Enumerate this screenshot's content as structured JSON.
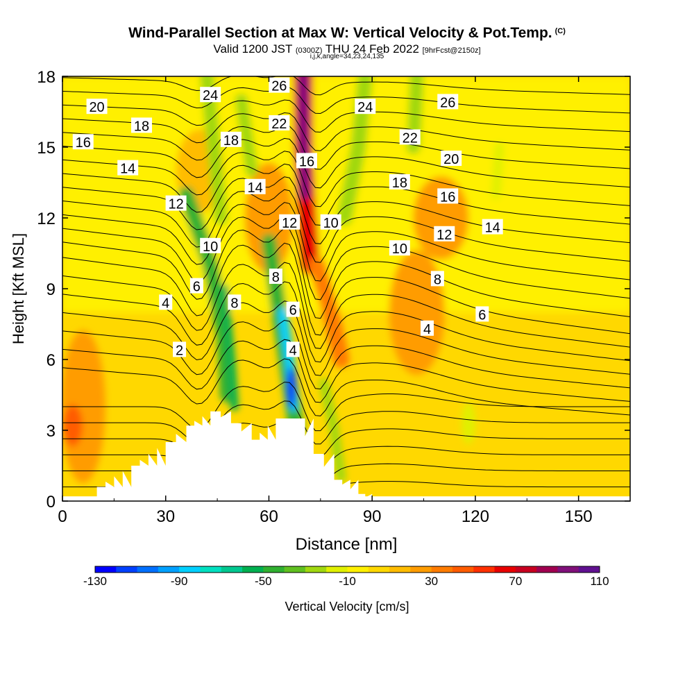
{
  "title": {
    "main": "Wind-Parallel Section at Max W: Vertical Velocity & Pot.Temp.",
    "copyright": "(C)",
    "valid_prefix": "Valid 1200 JST",
    "valid_utc": "(0300Z)",
    "valid_date": "THU 24 Feb 2022",
    "forecast": "[9hrFcst@2150z]",
    "section_params": "i,j,k,angle=34,23,24,135"
  },
  "chart_data": {
    "type": "heatmap",
    "xlabel": "Distance [nm]",
    "ylabel": "Height [Kft MSL]",
    "xlim": [
      0,
      165
    ],
    "ylim": [
      0,
      18
    ],
    "x_ticks": [
      0,
      30,
      60,
      90,
      120,
      150
    ],
    "y_ticks": [
      0,
      3,
      6,
      9,
      12,
      15,
      18
    ],
    "colorbar": {
      "label": "Vertical Velocity [cm/s]",
      "tick_labels": [
        -130,
        -90,
        -50,
        -10,
        30,
        70,
        110
      ],
      "range": [
        -130,
        110
      ],
      "step": 10,
      "colors": [
        "#0000ff",
        "#0040ff",
        "#0070ff",
        "#00a0ff",
        "#00d0ff",
        "#00e0c0",
        "#00c890",
        "#00b050",
        "#30b030",
        "#60c020",
        "#a0d810",
        "#e0f000",
        "#fff000",
        "#ffd800",
        "#ffbc00",
        "#ff9c00",
        "#ff7c00",
        "#ff5c00",
        "#ff3000",
        "#e80000",
        "#c80020",
        "#a00050",
        "#80107a",
        "#601090"
      ]
    },
    "terrain_profile": {
      "distance": [
        0,
        10,
        10,
        20,
        30,
        36,
        43,
        49,
        55,
        62,
        68,
        73,
        79,
        86,
        90
      ],
      "height": [
        0,
        0,
        0.6,
        1.5,
        2.5,
        3.2,
        3.8,
        3.3,
        2.6,
        3.5,
        3.5,
        2.0,
        0.9,
        0.3,
        0
      ]
    },
    "updrafts_cm_s": [
      {
        "distance": 3,
        "height": 3.2,
        "w": 45
      },
      {
        "distance": 70,
        "height": 16,
        "w": 100
      },
      {
        "distance": 70,
        "height": 11,
        "w": 70
      },
      {
        "distance": 80,
        "height": 8,
        "w": 40
      }
    ],
    "downdrafts_cm_s": [
      {
        "distance": 66,
        "height": 5,
        "w": -110
      },
      {
        "distance": 45,
        "height": 6,
        "w": -50
      },
      {
        "distance": 40,
        "height": 10,
        "w": -40
      },
      {
        "distance": 88,
        "height": 15,
        "w": -40
      },
      {
        "distance": 100,
        "height": 15,
        "w": -35
      }
    ],
    "contour_field": "Pot.Temp.",
    "contour_labels": [
      {
        "text": "20",
        "distance": 10,
        "height": 16.7
      },
      {
        "text": "16",
        "distance": 6,
        "height": 15.2
      },
      {
        "text": "18",
        "distance": 23,
        "height": 15.9
      },
      {
        "text": "14",
        "distance": 19,
        "height": 14.1
      },
      {
        "text": "12",
        "distance": 33,
        "height": 12.6
      },
      {
        "text": "24",
        "distance": 43,
        "height": 17.2
      },
      {
        "text": "18",
        "distance": 49,
        "height": 15.3
      },
      {
        "text": "14",
        "distance": 56,
        "height": 13.3
      },
      {
        "text": "26",
        "distance": 63,
        "height": 17.6
      },
      {
        "text": "22",
        "distance": 63,
        "height": 16.0
      },
      {
        "text": "16",
        "distance": 71,
        "height": 14.4
      },
      {
        "text": "12",
        "distance": 66,
        "height": 11.8
      },
      {
        "text": "10",
        "distance": 78,
        "height": 11.8
      },
      {
        "text": "10",
        "distance": 43,
        "height": 10.8
      },
      {
        "text": "6",
        "distance": 39,
        "height": 9.1
      },
      {
        "text": "8",
        "distance": 50,
        "height": 8.4
      },
      {
        "text": "8",
        "distance": 62,
        "height": 9.5
      },
      {
        "text": "4",
        "distance": 30,
        "height": 8.4
      },
      {
        "text": "6",
        "distance": 67,
        "height": 8.1
      },
      {
        "text": "4",
        "distance": 67,
        "height": 6.4
      },
      {
        "text": "2",
        "distance": 34,
        "height": 6.4
      },
      {
        "text": "24",
        "distance": 88,
        "height": 16.7
      },
      {
        "text": "22",
        "distance": 101,
        "height": 15.4
      },
      {
        "text": "18",
        "distance": 98,
        "height": 13.5
      },
      {
        "text": "10",
        "distance": 98,
        "height": 10.7
      },
      {
        "text": "26",
        "distance": 112,
        "height": 16.9
      },
      {
        "text": "20",
        "distance": 113,
        "height": 14.5
      },
      {
        "text": "16",
        "distance": 112,
        "height": 12.9
      },
      {
        "text": "12",
        "distance": 111,
        "height": 11.3
      },
      {
        "text": "14",
        "distance": 125,
        "height": 11.6
      },
      {
        "text": "8",
        "distance": 109,
        "height": 9.4
      },
      {
        "text": "6",
        "distance": 122,
        "height": 7.9
      },
      {
        "text": "4",
        "distance": 106,
        "height": 7.3
      }
    ]
  }
}
